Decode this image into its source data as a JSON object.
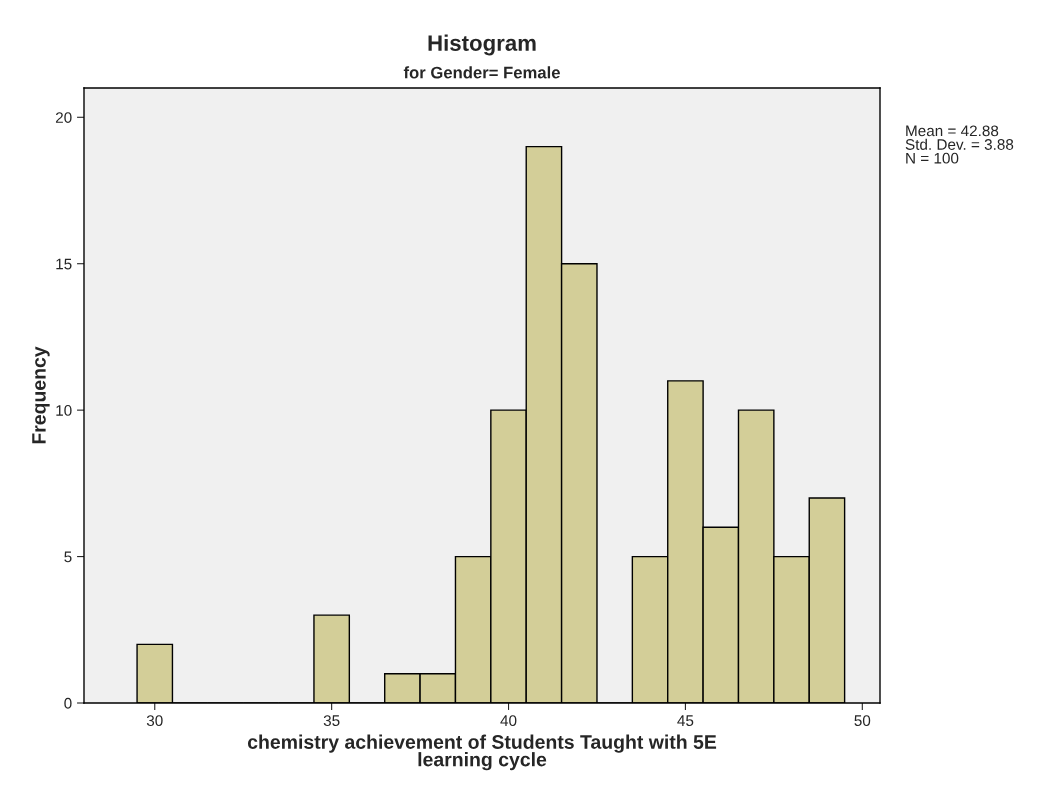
{
  "chart_data": {
    "type": "histogram",
    "title": "Histogram",
    "subtitle": "for Gender= Female",
    "xlabel": "chemistry achievement of Students Taught with 5E\nlearning cycle",
    "ylabel": "Frequency",
    "bins": [
      29.5,
      30.5,
      31.5,
      32.5,
      33.5,
      34.5,
      35.5,
      36.5,
      37.5,
      38.5,
      39.5,
      40.5,
      41.5,
      42.5,
      43.5,
      44.5,
      45.5,
      46.5,
      47.5,
      48.5,
      49.5
    ],
    "values": [
      2,
      0,
      0,
      0,
      0,
      3,
      0,
      1,
      1,
      5,
      10,
      19,
      15,
      0,
      5,
      11,
      6,
      10,
      5,
      7
    ],
    "color": "#d3ce98",
    "xlim": [
      28,
      50.5
    ],
    "ylim": [
      0,
      21
    ],
    "xticks": [
      30,
      35,
      40,
      45,
      50
    ],
    "yticks": [
      0,
      5,
      10,
      15,
      20
    ],
    "annotations": [
      "Mean = 42.88\nStd. Dev. = 3.88\nN = 100"
    ],
    "grid": false,
    "legend": false
  }
}
